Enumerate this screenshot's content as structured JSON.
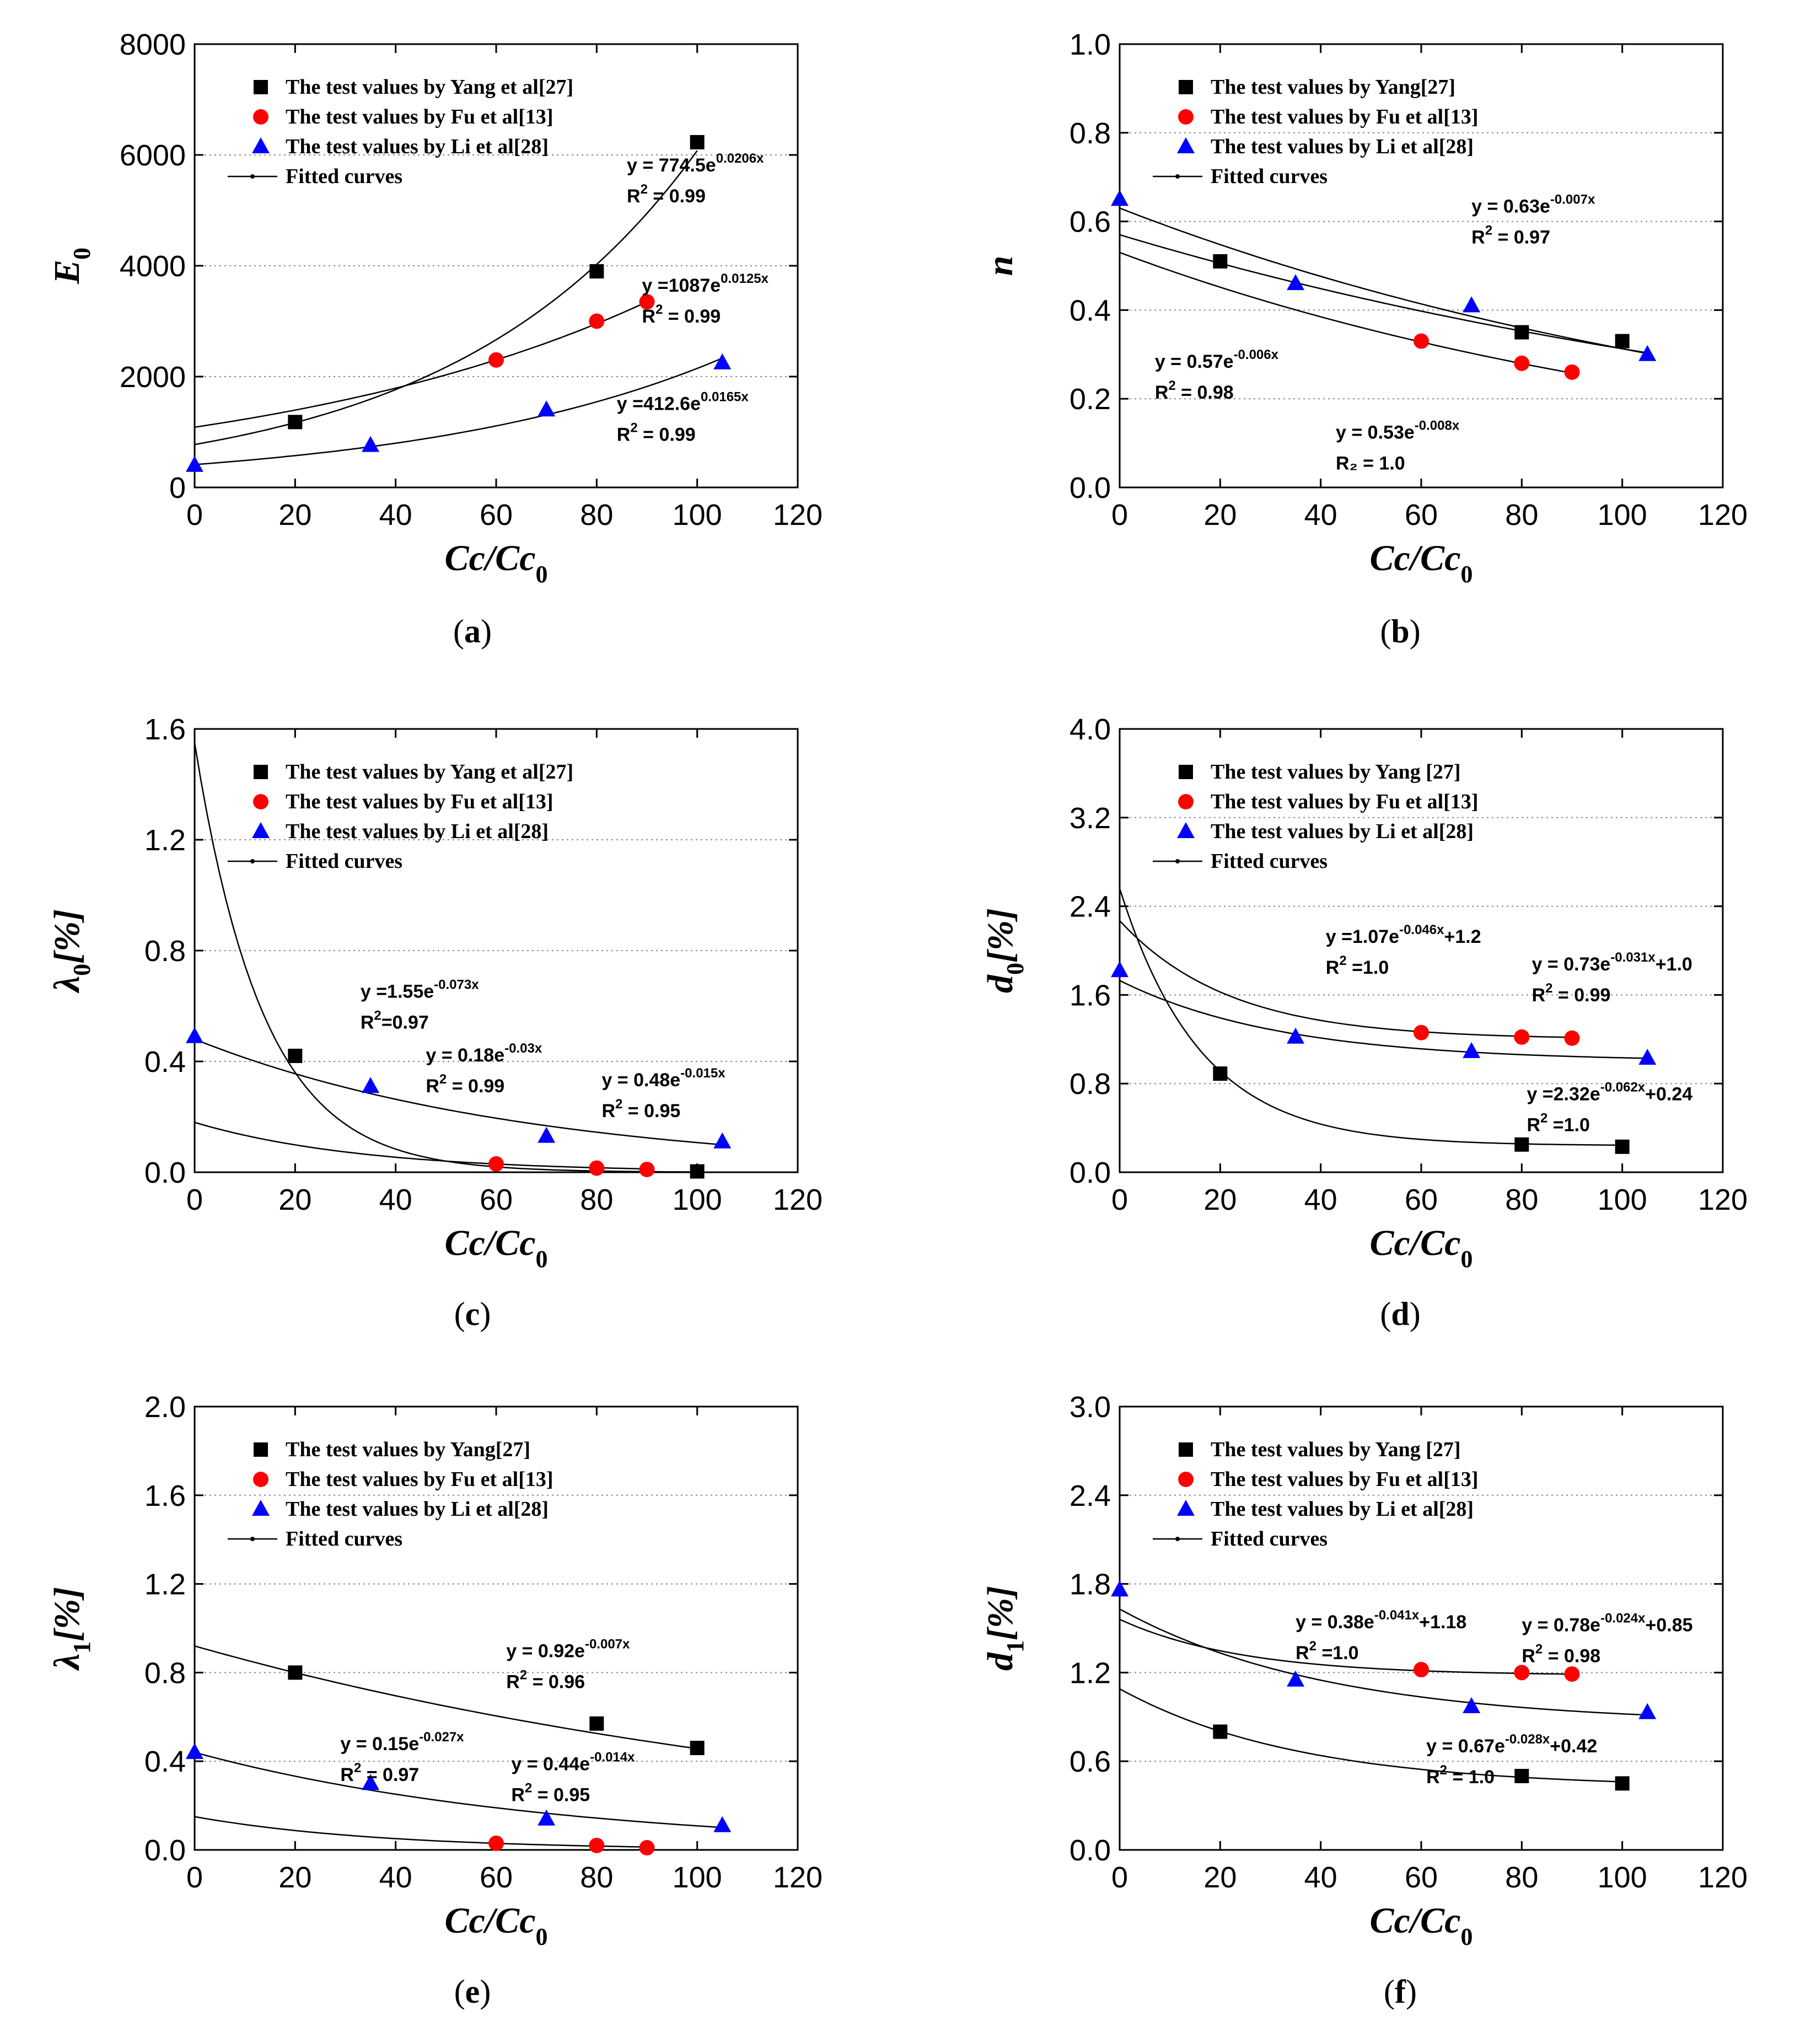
{
  "chart_data": [
    {
      "type": "scatter",
      "panel_label": "a",
      "xlabel": "Cc/Cc",
      "xlabel_sub": "0",
      "ylabel": "E",
      "ylabel_sub": "0",
      "ylabel_suffix": "",
      "xlim": [
        0,
        120
      ],
      "ylim": [
        0,
        8000
      ],
      "xticks": [
        0,
        20,
        40,
        60,
        80,
        100,
        120
      ],
      "yticks": [
        0,
        2000,
        4000,
        6000,
        8000
      ],
      "ytick_decimals": 0,
      "grid": "dotted",
      "legend_position": "top-left",
      "series": [
        {
          "name": "The test values by Yang et al[27]",
          "marker": "square",
          "color": "#000000",
          "x": [
            20,
            80,
            100
          ],
          "y": [
            1180,
            3900,
            6230
          ]
        },
        {
          "name": "The test values by Fu et al[13]",
          "marker": "circle",
          "color": "#ff0000",
          "x": [
            60,
            80,
            90
          ],
          "y": [
            2300,
            3000,
            3350
          ]
        },
        {
          "name": "The test values by Li et al[28]",
          "marker": "triangle",
          "color": "#0000ff",
          "x": [
            0,
            35,
            70,
            105
          ],
          "y": [
            400,
            760,
            1400,
            2250
          ]
        }
      ],
      "fit_legend": "Fitted curves",
      "fits": [
        {
          "a": 774.5,
          "b": 0.0206,
          "c": 0,
          "x0": 0,
          "x1": 100
        },
        {
          "a": 1087,
          "b": 0.0125,
          "c": 0,
          "x0": 0,
          "x1": 90
        },
        {
          "a": 412.6,
          "b": 0.0165,
          "c": 0,
          "x0": 0,
          "x1": 105
        }
      ],
      "annotations": [
        {
          "eq_pre": "y = 774.5e",
          "eq_sup": "0.0206x",
          "eq_post": "",
          "r2_pre": "R",
          "r2_sup": "2",
          "r2_post": " = 0.99",
          "x": 86,
          "y": 5700
        },
        {
          "eq_pre": "y =1087e",
          "eq_sup": "0.0125x",
          "eq_post": "",
          "r2_pre": "R",
          "r2_sup": "2",
          "r2_post": " = 0.99",
          "x": 89,
          "y": 3530
        },
        {
          "eq_pre": "y =412.6e",
          "eq_sup": "0.0165x",
          "eq_post": "",
          "r2_pre": "R",
          "r2_sup": "2",
          "r2_post": " = 0.99",
          "x": 84,
          "y": 1400
        }
      ]
    },
    {
      "type": "scatter",
      "panel_label": "b",
      "xlabel": "Cc/Cc",
      "xlabel_sub": "0",
      "ylabel": "n",
      "ylabel_sub": "",
      "ylabel_suffix": "",
      "xlim": [
        0,
        120
      ],
      "ylim": [
        0,
        1.0
      ],
      "xticks": [
        0,
        20,
        40,
        60,
        80,
        100,
        120
      ],
      "yticks": [
        0.0,
        0.2,
        0.4,
        0.6,
        0.8,
        1.0
      ],
      "ytick_decimals": 1,
      "grid": "dotted",
      "legend_position": "top-left",
      "series": [
        {
          "name": "The test values by Yang[27]",
          "marker": "square",
          "color": "#000000",
          "x": [
            20,
            80,
            100
          ],
          "y": [
            0.51,
            0.35,
            0.33
          ]
        },
        {
          "name": "The test values by Fu et al[13]",
          "marker": "circle",
          "color": "#ff0000",
          "x": [
            60,
            80,
            90
          ],
          "y": [
            0.33,
            0.28,
            0.26
          ]
        },
        {
          "name": "The test values by Li et al[28]",
          "marker": "triangle",
          "color": "#0000ff",
          "x": [
            0,
            35,
            70,
            105
          ],
          "y": [
            0.65,
            0.46,
            0.41,
            0.3
          ]
        }
      ],
      "fit_legend": "Fitted curves",
      "fits": [
        {
          "a": 0.63,
          "b": -0.007,
          "c": 0,
          "x0": 0,
          "x1": 105
        },
        {
          "a": 0.57,
          "b": -0.006,
          "c": 0,
          "x0": 0,
          "x1": 105
        },
        {
          "a": 0.53,
          "b": -0.008,
          "c": 0,
          "x0": 0,
          "x1": 90
        }
      ],
      "annotations": [
        {
          "eq_pre": "y = 0.63e",
          "eq_sup": "-0.007x",
          "eq_post": "",
          "r2_pre": "R",
          "r2_sup": "2",
          "r2_post": " = 0.97",
          "x": 70,
          "y": 0.62
        },
        {
          "eq_pre": "y = 0.57e",
          "eq_sup": "-0.006x",
          "eq_post": "",
          "r2_pre": "R",
          "r2_sup": "2",
          "r2_post": " = 0.98",
          "x": 7,
          "y": 0.27
        },
        {
          "eq_pre": "y = 0.53e",
          "eq_sup": "-0.008x",
          "eq_post": "",
          "r2_pre": "R",
          "r2_sup": "",
          "r2_post": "",
          "r2_alt": "R₂ = 1.0",
          "x": 43,
          "y": 0.11
        }
      ]
    },
    {
      "type": "scatter",
      "panel_label": "c",
      "xlabel": "Cc/Cc",
      "xlabel_sub": "0",
      "ylabel": "λ",
      "ylabel_sub": "0",
      "ylabel_suffix": "[%]",
      "xlim": [
        0,
        120
      ],
      "ylim": [
        0,
        1.6
      ],
      "xticks": [
        0,
        20,
        40,
        60,
        80,
        100,
        120
      ],
      "yticks": [
        0.0,
        0.4,
        0.8,
        1.2,
        1.6
      ],
      "ytick_decimals": 1,
      "grid": "dotted",
      "legend_position": "top-left",
      "series": [
        {
          "name": "The test values by Yang et al[27]",
          "marker": "square",
          "color": "#000000",
          "x": [
            20,
            100
          ],
          "y": [
            0.42,
            0.003
          ]
        },
        {
          "name": "The test values by Fu et al[13]",
          "marker": "circle",
          "color": "#ff0000",
          "x": [
            60,
            80,
            90
          ],
          "y": [
            0.03,
            0.015,
            0.01
          ]
        },
        {
          "name": "The test values by Li et al[28]",
          "marker": "triangle",
          "color": "#0000ff",
          "x": [
            0,
            35,
            70,
            105
          ],
          "y": [
            0.49,
            0.31,
            0.13,
            0.11
          ]
        }
      ],
      "fit_legend": "Fitted curves",
      "fits": [
        {
          "a": 1.55,
          "b": -0.073,
          "c": 0,
          "x0": 0,
          "x1": 100
        },
        {
          "a": 0.18,
          "b": -0.03,
          "c": 0,
          "x0": 0,
          "x1": 90
        },
        {
          "a": 0.48,
          "b": -0.015,
          "c": 0,
          "x0": 0,
          "x1": 105
        }
      ],
      "annotations": [
        {
          "eq_pre": "y =1.55e",
          "eq_sup": "-0.073x",
          "eq_post": "",
          "r2_pre": "R",
          "r2_sup": "2",
          "r2_post": "=0.97",
          "x": 33,
          "y": 0.63
        },
        {
          "eq_pre": "y = 0.18e",
          "eq_sup": "-0.03x",
          "eq_post": "",
          "r2_pre": "R",
          "r2_sup": "2",
          "r2_post": " = 0.99",
          "x": 46,
          "y": 0.4
        },
        {
          "eq_pre": "y = 0.48e",
          "eq_sup": "-0.015x",
          "eq_post": "",
          "r2_pre": "R",
          "r2_sup": "2",
          "r2_post": " = 0.95",
          "x": 81,
          "y": 0.31
        }
      ]
    },
    {
      "type": "scatter",
      "panel_label": "d",
      "xlabel": "Cc/Cc",
      "xlabel_sub": "0",
      "ylabel": "d",
      "ylabel_sub": "0",
      "ylabel_suffix": "[%]",
      "xlim": [
        0,
        120
      ],
      "ylim": [
        0,
        4.0
      ],
      "xticks": [
        0,
        20,
        40,
        60,
        80,
        100,
        120
      ],
      "yticks": [
        0.0,
        0.8,
        1.6,
        2.4,
        3.2,
        4.0
      ],
      "ytick_decimals": 1,
      "grid": "dotted",
      "legend_position": "top-left",
      "series": [
        {
          "name": "The test values by Yang [27]",
          "marker": "square",
          "color": "#000000",
          "x": [
            20,
            80,
            100
          ],
          "y": [
            0.89,
            0.25,
            0.23
          ]
        },
        {
          "name": "The test values by Fu et al[13]",
          "marker": "circle",
          "color": "#ff0000",
          "x": [
            60,
            80,
            90
          ],
          "y": [
            1.26,
            1.22,
            1.21
          ]
        },
        {
          "name": "The test values by Li et al[28]",
          "marker": "triangle",
          "color": "#0000ff",
          "x": [
            0,
            35,
            70,
            105
          ],
          "y": [
            1.82,
            1.22,
            1.09,
            1.03
          ]
        }
      ],
      "fit_legend": "Fitted curves",
      "fits": [
        {
          "a": 1.07,
          "b": -0.046,
          "c": 1.2,
          "x0": 0,
          "x1": 90
        },
        {
          "a": 0.73,
          "b": -0.031,
          "c": 1.0,
          "x0": 0,
          "x1": 105
        },
        {
          "a": 2.32,
          "b": -0.062,
          "c": 0.24,
          "x0": 0,
          "x1": 100
        }
      ],
      "annotations": [
        {
          "eq_pre": "y =1.07e",
          "eq_sup": "-0.046x",
          "eq_post": "+1.2",
          "r2_pre": "R",
          "r2_sup": "2",
          "r2_post": " =1.0",
          "x": 41,
          "y": 2.07
        },
        {
          "eq_pre": "y = 0.73e",
          "eq_sup": "-0.031x",
          "eq_post": "+1.0",
          "r2_pre": "R",
          "r2_sup": "2",
          "r2_post": " = 0.99",
          "x": 82,
          "y": 1.82
        },
        {
          "eq_pre": "y =2.32e",
          "eq_sup": "-0.062x",
          "eq_post": "+0.24",
          "r2_pre": "R",
          "r2_sup": "2",
          "r2_post": " =1.0",
          "x": 81,
          "y": 0.65
        }
      ]
    },
    {
      "type": "scatter",
      "panel_label": "e",
      "xlabel": "Cc/Cc",
      "xlabel_sub": "0",
      "ylabel": "λ",
      "ylabel_sub": "1",
      "ylabel_suffix": "[%]",
      "xlim": [
        0,
        120
      ],
      "ylim": [
        0,
        2.0
      ],
      "xticks": [
        0,
        20,
        40,
        60,
        80,
        100,
        120
      ],
      "yticks": [
        0.0,
        0.4,
        0.8,
        1.2,
        1.6,
        2.0
      ],
      "ytick_decimals": 1,
      "grid": "dotted",
      "legend_position": "top-left",
      "series": [
        {
          "name": "The test values by Yang[27]",
          "marker": "square",
          "color": "#000000",
          "x": [
            20,
            80,
            100
          ],
          "y": [
            0.8,
            0.57,
            0.46
          ]
        },
        {
          "name": "The test values by Fu et al[13]",
          "marker": "circle",
          "color": "#ff0000",
          "x": [
            60,
            80,
            90
          ],
          "y": [
            0.03,
            0.02,
            0.01
          ]
        },
        {
          "name": "The test values by Li et al[28]",
          "marker": "triangle",
          "color": "#0000ff",
          "x": [
            0,
            35,
            70,
            105
          ],
          "y": [
            0.44,
            0.3,
            0.14,
            0.11
          ]
        }
      ],
      "fit_legend": "Fitted curves",
      "fits": [
        {
          "a": 0.92,
          "b": -0.007,
          "c": 0,
          "x0": 0,
          "x1": 100
        },
        {
          "a": 0.15,
          "b": -0.027,
          "c": 0,
          "x0": 0,
          "x1": 90
        },
        {
          "a": 0.44,
          "b": -0.014,
          "c": 0,
          "x0": 0,
          "x1": 105
        }
      ],
      "annotations": [
        {
          "eq_pre": "y = 0.92e",
          "eq_sup": "-0.007x",
          "eq_post": "",
          "r2_pre": "R",
          "r2_sup": "2",
          "r2_post": " = 0.96",
          "x": 62,
          "y": 0.87
        },
        {
          "eq_pre": "y = 0.15e",
          "eq_sup": "-0.027x",
          "eq_post": "",
          "r2_pre": "R",
          "r2_sup": "2",
          "r2_post": " = 0.97",
          "x": 29,
          "y": 0.45
        },
        {
          "eq_pre": "y = 0.44e",
          "eq_sup": "-0.014x",
          "eq_post": "",
          "r2_pre": "R",
          "r2_sup": "2",
          "r2_post": " = 0.95",
          "x": 63,
          "y": 0.36
        }
      ]
    },
    {
      "type": "scatter",
      "panel_label": "f",
      "xlabel": "Cc/Cc",
      "xlabel_sub": "0",
      "ylabel": "d",
      "ylabel_sub": "1",
      "ylabel_suffix": "[%]",
      "xlim": [
        0,
        120
      ],
      "ylim": [
        0,
        3.0
      ],
      "xticks": [
        0,
        20,
        40,
        60,
        80,
        100,
        120
      ],
      "yticks": [
        0.0,
        0.6,
        1.2,
        1.8,
        2.4,
        3.0
      ],
      "ytick_decimals": 1,
      "grid": "dotted",
      "legend_position": "top-left",
      "series": [
        {
          "name": "The test values by Yang [27]",
          "marker": "square",
          "color": "#000000",
          "x": [
            20,
            80,
            100
          ],
          "y": [
            0.8,
            0.5,
            0.45
          ]
        },
        {
          "name": "The test values by Fu et al[13]",
          "marker": "circle",
          "color": "#ff0000",
          "x": [
            60,
            80,
            90
          ],
          "y": [
            1.22,
            1.2,
            1.19
          ]
        },
        {
          "name": "The test values by Li et al[28]",
          "marker": "triangle",
          "color": "#0000ff",
          "x": [
            0,
            35,
            70,
            105
          ],
          "y": [
            1.76,
            1.15,
            0.97,
            0.93
          ]
        }
      ],
      "fit_legend": "Fitted curves",
      "fits": [
        {
          "a": 0.38,
          "b": -0.041,
          "c": 1.18,
          "x0": 0,
          "x1": 90
        },
        {
          "a": 0.78,
          "b": -0.024,
          "c": 0.85,
          "x0": 0,
          "x1": 105
        },
        {
          "a": 0.67,
          "b": -0.028,
          "c": 0.42,
          "x0": 0,
          "x1": 100
        }
      ],
      "annotations": [
        {
          "eq_pre": "y = 0.38e",
          "eq_sup": "-0.041x",
          "eq_post": "+1.18",
          "r2_pre": "R",
          "r2_sup": "2",
          "r2_post": " =1.0",
          "x": 35,
          "y": 1.5
        },
        {
          "eq_pre": "y = 0.78e",
          "eq_sup": "-0.024x",
          "eq_post": "+0.85",
          "r2_pre": "R",
          "r2_sup": "2",
          "r2_post": " = 0.98",
          "x": 80,
          "y": 1.48
        },
        {
          "eq_pre": "y = 0.67e",
          "eq_sup": "-0.028x",
          "eq_post": "+0.42",
          "r2_pre": "R",
          "r2_sup": "2",
          "r2_post": " = 1.0",
          "x": 61,
          "y": 0.66
        }
      ]
    }
  ]
}
